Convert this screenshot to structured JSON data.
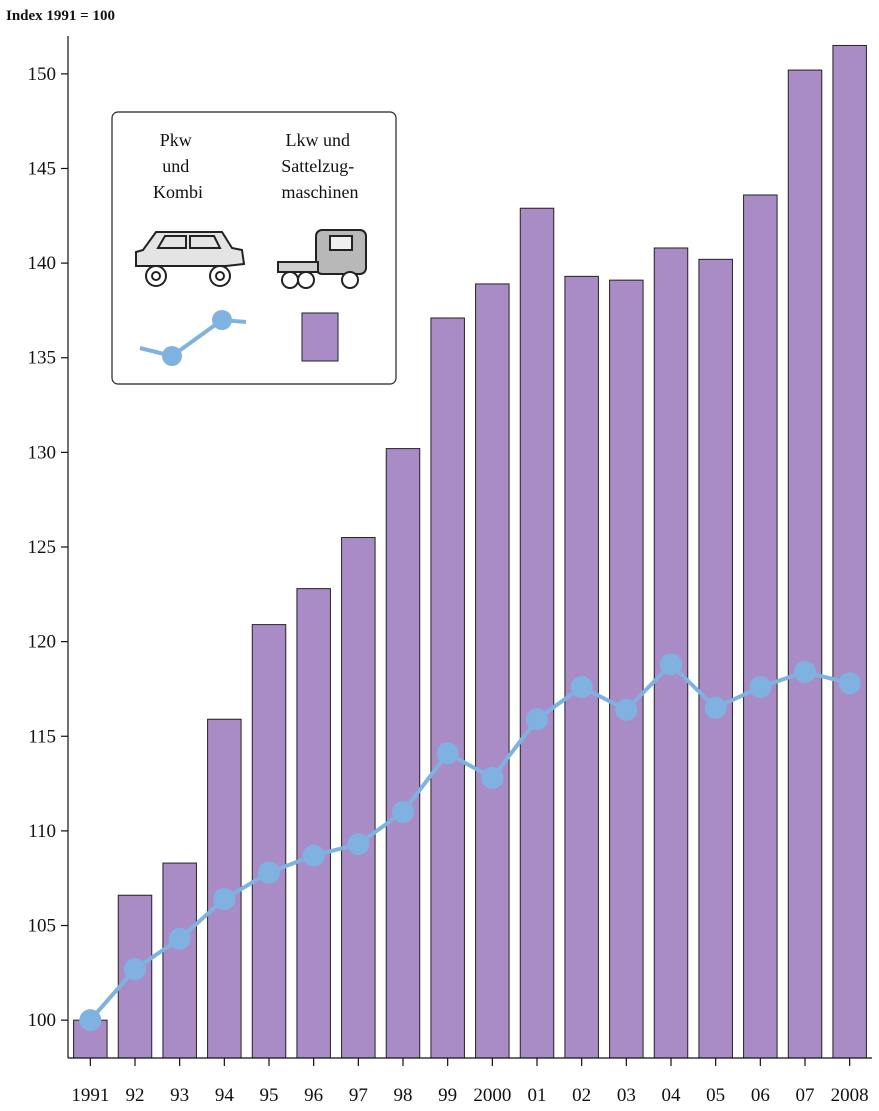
{
  "chart_data": {
    "type": "bar",
    "unit_label": "Index 1991 = 100",
    "categories": [
      "1991",
      "92",
      "93",
      "94",
      "95",
      "96",
      "97",
      "98",
      "99",
      "2000",
      "01",
      "02",
      "03",
      "04",
      "05",
      "06",
      "07",
      "2008"
    ],
    "ylim": [
      98,
      152
    ],
    "yticks": [
      100,
      105,
      110,
      115,
      120,
      125,
      130,
      135,
      140,
      145,
      150
    ],
    "grid": false,
    "legend_position": "top-left",
    "series": [
      {
        "name": "Lkw und Sattelzug-maschinen",
        "legend_lines": [
          "Lkw und",
          "Sattelzug-",
          "maschinen"
        ],
        "type": "bar",
        "color": "#a98cc6",
        "values": [
          100.0,
          106.6,
          108.3,
          115.9,
          120.9,
          122.8,
          125.5,
          130.2,
          137.1,
          138.9,
          142.9,
          139.3,
          139.1,
          140.8,
          140.2,
          143.6,
          150.2,
          151.5
        ]
      },
      {
        "name": "Pkw und Kombi",
        "legend_lines": [
          "Pkw",
          "und",
          "Kombi"
        ],
        "type": "line",
        "color": "#7fb2e0",
        "values": [
          100.0,
          102.7,
          104.3,
          106.4,
          107.8,
          108.7,
          109.3,
          111.0,
          114.1,
          112.8,
          115.9,
          117.6,
          116.4,
          118.8,
          116.5,
          117.6,
          118.4,
          117.8
        ]
      }
    ]
  }
}
